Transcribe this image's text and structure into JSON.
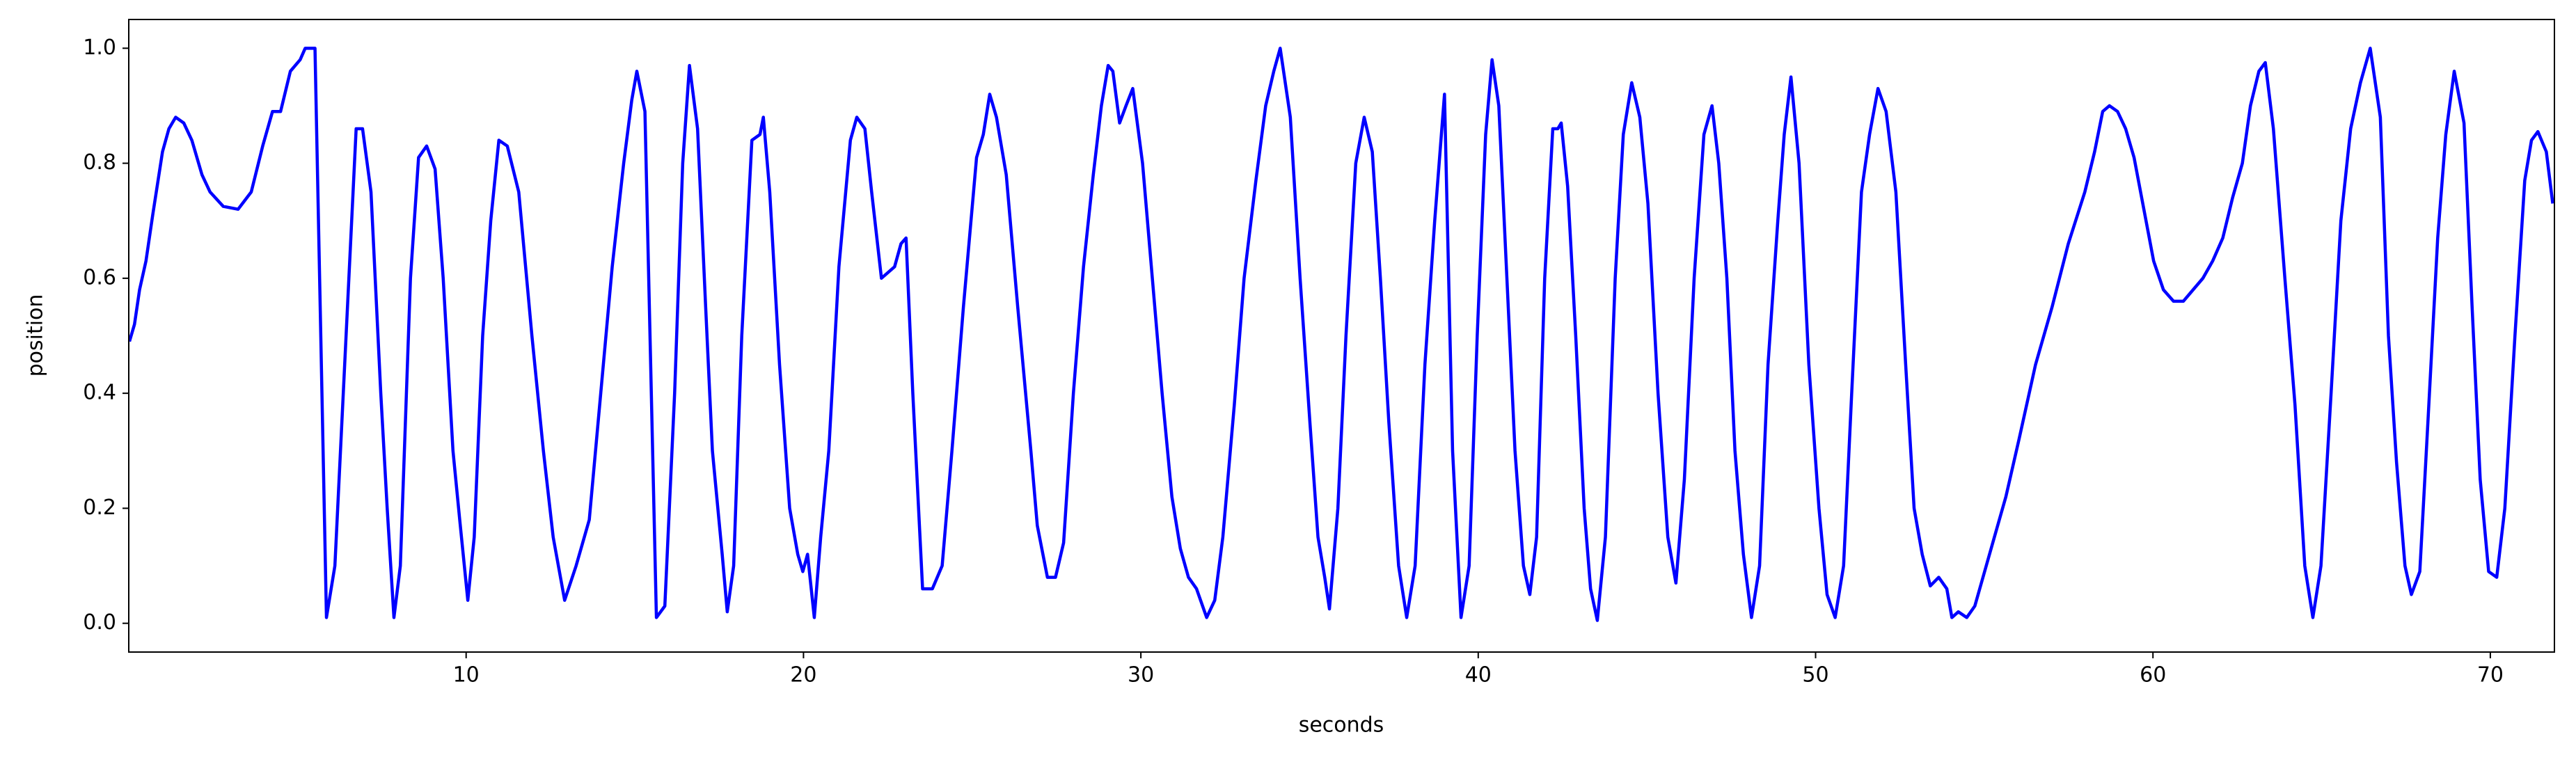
{
  "chart_data": {
    "type": "line",
    "x_label": "seconds",
    "y_label": "position",
    "color": "#0000ff",
    "xlim": [
      0,
      71.9
    ],
    "ylim": [
      -0.05,
      1.05
    ],
    "xticks": [
      10,
      20,
      30,
      40,
      50,
      60,
      70
    ],
    "yticks": [
      {
        "value": 0,
        "label": "0.0"
      },
      {
        "value": 0.2,
        "label": "0.2"
      },
      {
        "value": 0.4,
        "label": "0.4"
      },
      {
        "value": 0.6,
        "label": "0.6"
      },
      {
        "value": 0.8,
        "label": "0.8"
      },
      {
        "value": 1,
        "label": "1.0"
      }
    ],
    "x": [
      0.02,
      0.17,
      0.32,
      0.51,
      0.71,
      1.0,
      1.19,
      1.39,
      1.63,
      1.87,
      2.17,
      2.41,
      2.8,
      3.24,
      3.63,
      3.97,
      4.26,
      4.5,
      4.79,
      5.08,
      5.23,
      5.52,
      5.86,
      6.11,
      6.4,
      6.74,
      6.93,
      7.18,
      7.47,
      7.66,
      7.86,
      8.05,
      8.35,
      8.59,
      8.83,
      9.08,
      9.32,
      9.61,
      9.81,
      10.05,
      10.24,
      10.49,
      10.73,
      10.97,
      11.22,
      11.56,
      11.95,
      12.29,
      12.58,
      12.92,
      13.26,
      13.65,
      13.99,
      14.33,
      14.67,
      14.91,
      15.06,
      15.3,
      15.64,
      15.89,
      16.18,
      16.42,
      16.62,
      16.86,
      17.1,
      17.3,
      17.59,
      17.74,
      17.93,
      18.17,
      18.47,
      18.71,
      18.81,
      19.0,
      19.29,
      19.59,
      19.83,
      19.98,
      20.12,
      20.32,
      20.51,
      20.75,
      21.05,
      21.39,
      21.58,
      21.82,
      22.02,
      22.31,
      22.7,
      22.89,
      23.04,
      23.24,
      23.53,
      23.82,
      24.11,
      24.4,
      24.74,
      25.13,
      25.33,
      25.52,
      25.72,
      26.01,
      26.35,
      26.74,
      26.93,
      27.23,
      27.47,
      27.71,
      28.0,
      28.3,
      28.59,
      28.83,
      29.03,
      29.17,
      29.37,
      29.56,
      29.76,
      30.05,
      30.34,
      30.63,
      30.92,
      31.17,
      31.41,
      31.65,
      31.95,
      32.19,
      32.43,
      32.77,
      33.06,
      33.41,
      33.7,
      33.94,
      34.13,
      34.43,
      34.72,
      35.01,
      35.25,
      35.45,
      35.59,
      35.84,
      36.08,
      36.37,
      36.62,
      36.86,
      37.1,
      37.35,
      37.64,
      37.88,
      38.13,
      38.42,
      38.71,
      39.0,
      39.24,
      39.49,
      39.73,
      39.97,
      40.22,
      40.41,
      40.61,
      40.85,
      41.09,
      41.34,
      41.53,
      41.73,
      41.97,
      42.21,
      42.36,
      42.46,
      42.65,
      42.89,
      43.14,
      43.33,
      43.53,
      43.77,
      44.06,
      44.3,
      44.55,
      44.79,
      45.03,
      45.33,
      45.62,
      45.86,
      46.11,
      46.4,
      46.69,
      46.93,
      47.13,
      47.37,
      47.61,
      47.86,
      48.1,
      48.34,
      48.59,
      48.88,
      49.07,
      49.27,
      49.51,
      49.8,
      50.1,
      50.34,
      50.58,
      50.83,
      51.07,
      51.36,
      51.6,
      51.85,
      52.09,
      52.38,
      52.67,
      52.92,
      53.16,
      53.4,
      53.65,
      53.89,
      54.04,
      54.23,
      54.48,
      54.72,
      55.01,
      55.3,
      55.64,
      56.03,
      56.52,
      57.01,
      57.49,
      57.98,
      58.27,
      58.51,
      58.71,
      58.95,
      59.19,
      59.44,
      59.73,
      60.02,
      60.31,
      60.61,
      60.9,
      61.19,
      61.48,
      61.77,
      62.07,
      62.36,
      62.65,
      62.89,
      63.14,
      63.33,
      63.57,
      63.91,
      64.21,
      64.5,
      64.74,
      64.98,
      65.28,
      65.57,
      65.86,
      66.15,
      66.44,
      66.74,
      66.98,
      67.22,
      67.47,
      67.66,
      67.91,
      68.15,
      68.44,
      68.68,
      68.93,
      69.22,
      69.46,
      69.7,
      69.95,
      70.19,
      70.43,
      70.73,
      71.02,
      71.22,
      71.41,
      71.66,
      71.85
    ],
    "values": [
      0.49,
      0.52,
      0.58,
      0.63,
      0.71,
      0.82,
      0.86,
      0.88,
      0.87,
      0.84,
      0.78,
      0.75,
      0.725,
      0.72,
      0.75,
      0.83,
      0.89,
      0.89,
      0.96,
      0.98,
      1.0,
      1.0,
      0.01,
      0.1,
      0.45,
      0.86,
      0.86,
      0.75,
      0.4,
      0.2,
      0.01,
      0.1,
      0.6,
      0.81,
      0.83,
      0.79,
      0.6,
      0.3,
      0.18,
      0.04,
      0.15,
      0.5,
      0.7,
      0.84,
      0.83,
      0.75,
      0.5,
      0.3,
      0.15,
      0.04,
      0.1,
      0.18,
      0.4,
      0.62,
      0.8,
      0.91,
      0.96,
      0.89,
      0.01,
      0.03,
      0.4,
      0.8,
      0.97,
      0.86,
      0.55,
      0.3,
      0.12,
      0.02,
      0.1,
      0.5,
      0.84,
      0.85,
      0.88,
      0.75,
      0.45,
      0.2,
      0.12,
      0.09,
      0.12,
      0.01,
      0.15,
      0.3,
      0.62,
      0.84,
      0.88,
      0.86,
      0.75,
      0.6,
      0.62,
      0.66,
      0.67,
      0.4,
      0.06,
      0.06,
      0.1,
      0.3,
      0.55,
      0.81,
      0.85,
      0.92,
      0.88,
      0.78,
      0.55,
      0.3,
      0.17,
      0.08,
      0.08,
      0.14,
      0.4,
      0.62,
      0.78,
      0.9,
      0.97,
      0.96,
      0.87,
      0.9,
      0.93,
      0.8,
      0.6,
      0.4,
      0.22,
      0.13,
      0.08,
      0.06,
      0.01,
      0.04,
      0.15,
      0.38,
      0.6,
      0.77,
      0.9,
      0.96,
      1.0,
      0.88,
      0.6,
      0.35,
      0.15,
      0.08,
      0.025,
      0.2,
      0.5,
      0.8,
      0.88,
      0.82,
      0.6,
      0.35,
      0.1,
      0.01,
      0.1,
      0.45,
      0.7,
      0.92,
      0.3,
      0.01,
      0.1,
      0.5,
      0.85,
      0.98,
      0.9,
      0.6,
      0.3,
      0.1,
      0.05,
      0.15,
      0.6,
      0.86,
      0.86,
      0.87,
      0.76,
      0.5,
      0.2,
      0.06,
      0.005,
      0.15,
      0.6,
      0.85,
      0.94,
      0.88,
      0.73,
      0.4,
      0.15,
      0.07,
      0.25,
      0.6,
      0.85,
      0.9,
      0.8,
      0.6,
      0.3,
      0.12,
      0.01,
      0.1,
      0.45,
      0.7,
      0.85,
      0.95,
      0.8,
      0.45,
      0.2,
      0.05,
      0.01,
      0.1,
      0.4,
      0.75,
      0.85,
      0.93,
      0.89,
      0.75,
      0.45,
      0.2,
      0.12,
      0.065,
      0.08,
      0.06,
      0.01,
      0.02,
      0.01,
      0.03,
      0.09,
      0.15,
      0.22,
      0.32,
      0.45,
      0.55,
      0.66,
      0.75,
      0.82,
      0.89,
      0.9,
      0.89,
      0.86,
      0.81,
      0.72,
      0.63,
      0.58,
      0.56,
      0.56,
      0.58,
      0.6,
      0.63,
      0.67,
      0.74,
      0.8,
      0.9,
      0.96,
      0.975,
      0.86,
      0.6,
      0.38,
      0.1,
      0.01,
      0.1,
      0.4,
      0.7,
      0.86,
      0.94,
      1.0,
      0.88,
      0.5,
      0.28,
      0.1,
      0.05,
      0.09,
      0.35,
      0.67,
      0.85,
      0.96,
      0.87,
      0.55,
      0.25,
      0.09,
      0.08,
      0.2,
      0.5,
      0.77,
      0.84,
      0.855,
      0.82,
      0.73
    ]
  }
}
